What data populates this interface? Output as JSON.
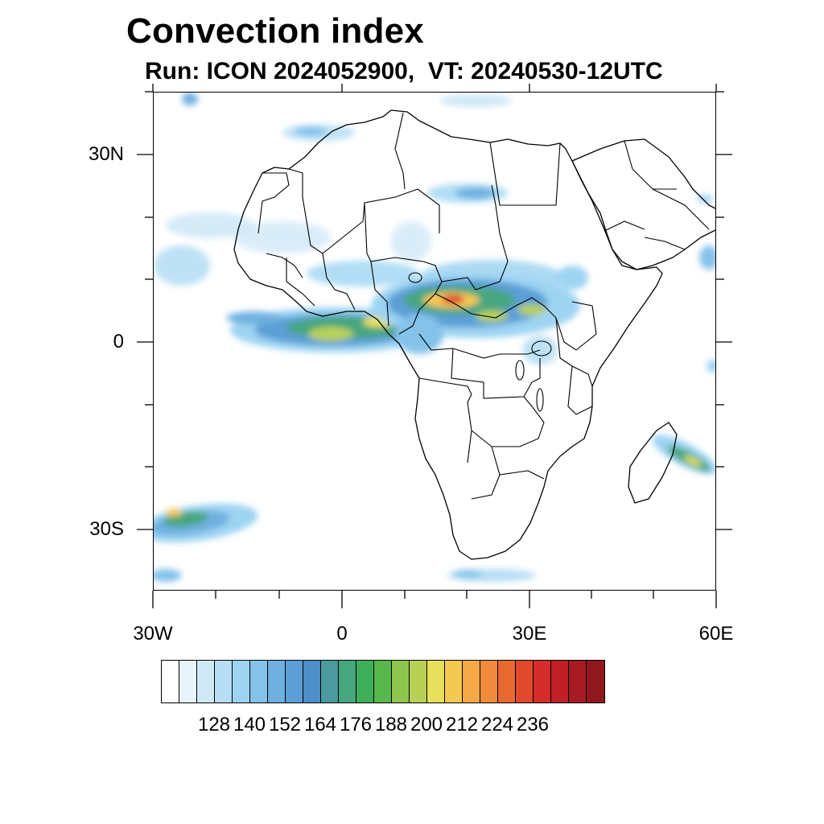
{
  "title": "Convection index",
  "subtitle": "Run: ICON 2024052900,  VT: 20240530-12UTC",
  "map": {
    "projection": "cylindrical equidistant",
    "lon_range": [
      -30,
      60
    ],
    "lat_range": [
      -40,
      40
    ],
    "lat_ticks": [
      {
        "value": 30,
        "label": "30N"
      },
      {
        "value": 0,
        "label": "0"
      },
      {
        "value": -30,
        "label": "30S"
      }
    ],
    "lon_ticks": [
      {
        "value": -30,
        "label": "30W"
      },
      {
        "value": 0,
        "label": "0"
      },
      {
        "value": 30,
        "label": "30E"
      },
      {
        "value": 60,
        "label": "60E"
      }
    ],
    "field_regions": [
      {
        "name": "itcz-west-africa",
        "center": [
          -1,
          1.5
        ],
        "intensity": "high"
      },
      {
        "name": "central-africa-core",
        "center": [
          20,
          6.5
        ],
        "intensity": "very-high"
      },
      {
        "name": "southwest-atlantic",
        "center": [
          -26,
          -28
        ],
        "intensity": "high"
      },
      {
        "name": "madagascar-east",
        "center": [
          55,
          -19
        ],
        "intensity": "high"
      }
    ]
  },
  "colorbar": {
    "colors": [
      "#ffffff",
      "#e8f4fb",
      "#cfe9f7",
      "#b7def4",
      "#9dd4f2",
      "#85c2ea",
      "#6fb0e0",
      "#5b9fd6",
      "#4e8fc7",
      "#4a9a9e",
      "#46a680",
      "#3fb05a",
      "#58b84e",
      "#8fc450",
      "#b8d056",
      "#e6e05a",
      "#f5c852",
      "#f4a847",
      "#f08a3c",
      "#e96a30",
      "#e0492b",
      "#d42d2a",
      "#c01f27",
      "#a81b22",
      "#8f171d"
    ],
    "labels": [
      "128",
      "140",
      "152",
      "164",
      "176",
      "188",
      "200",
      "212",
      "224",
      "236"
    ]
  }
}
